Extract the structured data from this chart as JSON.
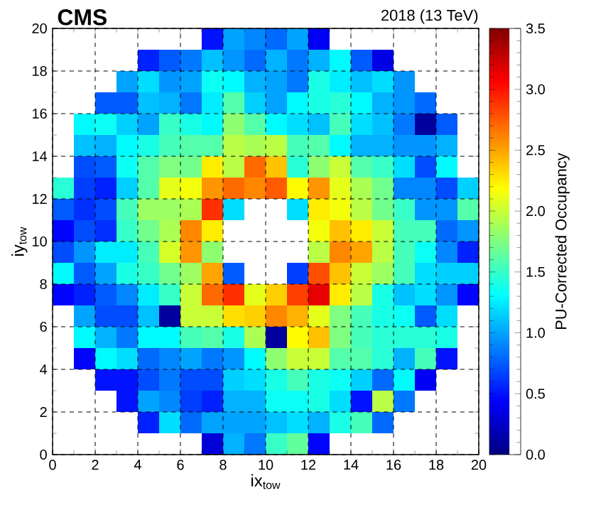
{
  "chart_data": {
    "type": "heatmap",
    "title": "CMS",
    "subtitle": "2018 (13 TeV)",
    "xlabel": "ix$_{tow}$",
    "ylabel": "iy$_{tow}$",
    "clabel": "PU-Corrected Occupancy",
    "xlim": [
      0,
      20
    ],
    "ylim": [
      0,
      20
    ],
    "xticks": [
      0,
      2,
      4,
      6,
      8,
      10,
      12,
      14,
      16,
      18,
      20
    ],
    "yticks": [
      0,
      2,
      4,
      6,
      8,
      10,
      12,
      14,
      16,
      18,
      20
    ],
    "clim": [
      0,
      3.5
    ],
    "cticks": [
      {
        "value": 0,
        "label": "0.0"
      },
      {
        "value": 0.5,
        "label": "0.5"
      },
      {
        "value": 1,
        "label": "1.0"
      },
      {
        "value": 1.5,
        "label": "1.5"
      },
      {
        "value": 2,
        "label": "2.0"
      },
      {
        "value": 2.5,
        "label": "2.5"
      },
      {
        "value": 3,
        "label": "3.0"
      },
      {
        "value": 3.5,
        "label": "3.5"
      }
    ],
    "grid": true,
    "cells": [
      [
        null,
        null,
        null,
        null,
        null,
        null,
        null,
        0.5,
        1.0,
        0.9,
        0.8,
        1.0,
        0.4,
        null,
        null,
        null,
        null,
        null,
        null,
        null
      ],
      [
        null,
        null,
        null,
        null,
        0.55,
        0.75,
        0.85,
        1.1,
        0.95,
        0.8,
        1.05,
        0.85,
        1.05,
        1.3,
        0.75,
        0.35,
        null,
        null,
        null,
        null
      ],
      [
        null,
        null,
        null,
        1.0,
        1.2,
        0.95,
        1.0,
        1.35,
        1.3,
        1.05,
        1.0,
        0.85,
        1.4,
        1.25,
        1.1,
        1.2,
        0.95,
        null,
        null,
        null
      ],
      [
        null,
        null,
        0.75,
        0.75,
        1.1,
        1.05,
        0.85,
        1.25,
        1.6,
        1.15,
        1.0,
        1.3,
        1.4,
        1.45,
        1.3,
        1.05,
        0.95,
        0.8,
        null,
        null
      ],
      [
        null,
        1.3,
        1.35,
        1.15,
        1.0,
        1.5,
        1.4,
        1.3,
        1.8,
        1.6,
        1.3,
        1.2,
        1.1,
        1.55,
        1.2,
        1.1,
        0.85,
        0.1,
        0.75,
        null
      ],
      [
        null,
        1.1,
        1.05,
        1.3,
        1.4,
        1.55,
        1.6,
        1.6,
        1.95,
        1.9,
        1.95,
        1.55,
        1.6,
        1.3,
        1.05,
        1.05,
        0.95,
        0.95,
        1.05,
        null
      ],
      [
        null,
        0.7,
        0.75,
        1.35,
        1.6,
        1.75,
        1.7,
        2.25,
        1.95,
        2.7,
        2.4,
        1.45,
        1.8,
        2.0,
        1.6,
        1.5,
        1.2,
        0.7,
        1.3,
        null
      ],
      [
        1.45,
        0.65,
        0.55,
        1.15,
        1.6,
        2.1,
        2.15,
        2.55,
        2.7,
        2.6,
        2.75,
        2.2,
        2.55,
        2.1,
        1.9,
        1.7,
        0.9,
        0.9,
        0.7,
        1.15
      ],
      [
        0.75,
        0.6,
        0.7,
        1.55,
        1.85,
        1.85,
        1.9,
        2.9,
        1.2,
        null,
        null,
        1.2,
        2.25,
        2.15,
        1.95,
        1.7,
        1.5,
        0.95,
        0.95,
        1.6
      ],
      [
        0.45,
        0.7,
        0.6,
        1.5,
        1.7,
        1.9,
        2.6,
        2.25,
        null,
        null,
        null,
        null,
        2.15,
        2.4,
        2.25,
        2.0,
        1.55,
        1.55,
        0.8,
        0.95
      ],
      [
        0.7,
        0.95,
        1.25,
        1.25,
        1.55,
        2.05,
        2.55,
        1.8,
        null,
        null,
        null,
        null,
        1.95,
        2.6,
        2.5,
        1.95,
        1.55,
        1.35,
        0.9,
        0.55
      ],
      [
        1.3,
        0.75,
        1.0,
        1.4,
        1.5,
        1.7,
        1.85,
        2.5,
        0.75,
        null,
        null,
        0.65,
        2.8,
        2.4,
        2.0,
        1.85,
        1.55,
        1.2,
        1.15,
        1.15
      ],
      [
        0.45,
        0.55,
        0.75,
        0.9,
        1.25,
        1.5,
        2.0,
        2.7,
        2.9,
        2.1,
        2.35,
        2.85,
        3.15,
        2.25,
        1.95,
        1.4,
        1.1,
        1.2,
        0.95,
        0.45
      ],
      [
        null,
        1.0,
        0.7,
        0.7,
        1.1,
        0.1,
        2.0,
        2.0,
        2.3,
        2.35,
        2.6,
        2.45,
        2.1,
        1.75,
        1.55,
        1.4,
        1.35,
        0.75,
        1.2,
        null
      ],
      [
        null,
        1.3,
        1.05,
        0.85,
        1.3,
        1.3,
        1.55,
        1.6,
        1.4,
        1.9,
        0.1,
        2.2,
        2.4,
        1.75,
        1.55,
        1.45,
        1.45,
        1.45,
        1.4,
        null
      ],
      [
        null,
        0.45,
        1.3,
        1.2,
        0.8,
        0.9,
        1.0,
        0.85,
        0.95,
        1.3,
        1.8,
        2.0,
        2.0,
        1.6,
        1.6,
        1.45,
        1.05,
        1.55,
        0.5,
        null
      ],
      [
        null,
        null,
        0.5,
        0.5,
        0.7,
        0.85,
        0.7,
        0.7,
        1.15,
        1.2,
        1.4,
        1.55,
        1.4,
        1.35,
        1.15,
        0.8,
        1.3,
        0.4,
        null,
        null
      ],
      [
        null,
        null,
        null,
        0.5,
        1.0,
        0.9,
        0.65,
        0.55,
        1.05,
        1.05,
        1.35,
        1.35,
        1.4,
        1.2,
        0.5,
        1.95,
        0.85,
        null,
        null,
        null
      ],
      [
        null,
        null,
        null,
        null,
        0.55,
        1.2,
        0.8,
        1.0,
        1.0,
        1.0,
        1.1,
        1.2,
        1.05,
        1.4,
        1.55,
        0.8,
        null,
        null,
        null,
        null
      ],
      [
        null,
        null,
        null,
        null,
        null,
        null,
        null,
        0.3,
        1.05,
        0.85,
        1.5,
        1.65,
        0.45,
        null,
        null,
        null,
        null,
        null,
        null,
        null
      ]
    ]
  }
}
